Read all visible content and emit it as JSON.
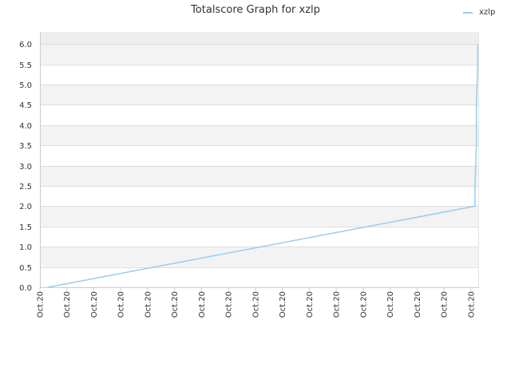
{
  "chart_data": {
    "type": "line",
    "title": "Totalscore Graph for xzlp",
    "xlabel": "",
    "ylabel": "",
    "x_tick_labels": [
      "Oct.20",
      "Oct.20",
      "Oct.20",
      "Oct.20",
      "Oct.20",
      "Oct.20",
      "Oct.20",
      "Oct.20",
      "Oct.20",
      "Oct.20",
      "Oct.20",
      "Oct.20",
      "Oct.20",
      "Oct.20",
      "Oct.20",
      "Oct.20",
      "Oct.20"
    ],
    "y_ticks": [
      0.0,
      0.5,
      1.0,
      1.5,
      2.0,
      2.5,
      3.0,
      3.5,
      4.0,
      4.5,
      5.0,
      5.5,
      6.0
    ],
    "y_tick_labels": [
      "0.0",
      "0.5",
      "1.0",
      "1.5",
      "2.0",
      "2.5",
      "3.0",
      "3.5",
      "4.0",
      "4.5",
      "5.0",
      "5.5",
      "6.0"
    ],
    "ylim": [
      0,
      6.3
    ],
    "xlim": [
      0,
      16.3
    ],
    "grid": true,
    "legend_position": "top-right",
    "colors": {
      "series": "#99ccf0",
      "band_light": "#f3f3f3",
      "band_dark": "#eeeeee",
      "grid": "#dddddd"
    },
    "series": [
      {
        "name": "xzlp",
        "x": [
          0.3,
          16.15,
          16.15,
          16.2,
          16.2,
          16.25,
          16.25
        ],
        "values": [
          0,
          2,
          2.5,
          3.5,
          4.5,
          5.5,
          6
        ]
      }
    ]
  }
}
